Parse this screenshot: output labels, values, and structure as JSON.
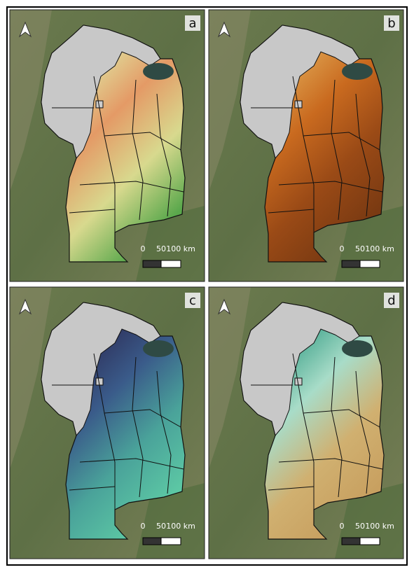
{
  "panels": [
    {
      "label": "a",
      "scale_labels": [
        "0",
        "50",
        "100 km"
      ]
    },
    {
      "label": "b",
      "scale_labels": [
        "0",
        "50",
        "100 km"
      ]
    },
    {
      "label": "c",
      "scale_labels": [
        "0",
        "50",
        "100 km"
      ]
    },
    {
      "label": "d",
      "scale_labels": [
        "0",
        "50",
        "100 km"
      ]
    }
  ]
}
